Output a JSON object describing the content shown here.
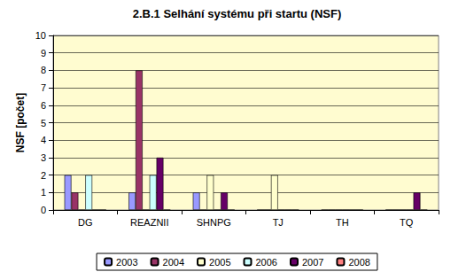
{
  "chart_data": {
    "type": "bar",
    "title": "2.B.1 Selhání systému při startu (NSF)",
    "y_label": "NSF [počet]",
    "categories": [
      "DG",
      "REAZNII",
      "SHNPG",
      "TJ",
      "TH",
      "TQ"
    ],
    "series": [
      {
        "name": "2003",
        "color": "#9999ff",
        "values": [
          2,
          1,
          1,
          0,
          0,
          0
        ]
      },
      {
        "name": "2004",
        "color": "#993366",
        "values": [
          1,
          8,
          0,
          0,
          0,
          0
        ]
      },
      {
        "name": "2005",
        "color": "#ffffcc",
        "values": [
          0,
          0,
          2,
          2,
          0,
          0
        ]
      },
      {
        "name": "2006",
        "color": "#ccffff",
        "values": [
          2,
          2,
          0,
          0,
          0,
          0
        ]
      },
      {
        "name": "2007",
        "color": "#660066",
        "values": [
          0,
          3,
          1,
          0,
          0,
          1
        ]
      },
      {
        "name": "2008",
        "color": "#ff8080",
        "values": [
          0,
          0,
          0,
          0,
          0,
          0
        ]
      }
    ],
    "ylim": [
      0,
      10
    ],
    "yticks": [
      0,
      1,
      2,
      3,
      4,
      5,
      6,
      7,
      8,
      9,
      10
    ],
    "grid": true,
    "legend": "bottom"
  }
}
